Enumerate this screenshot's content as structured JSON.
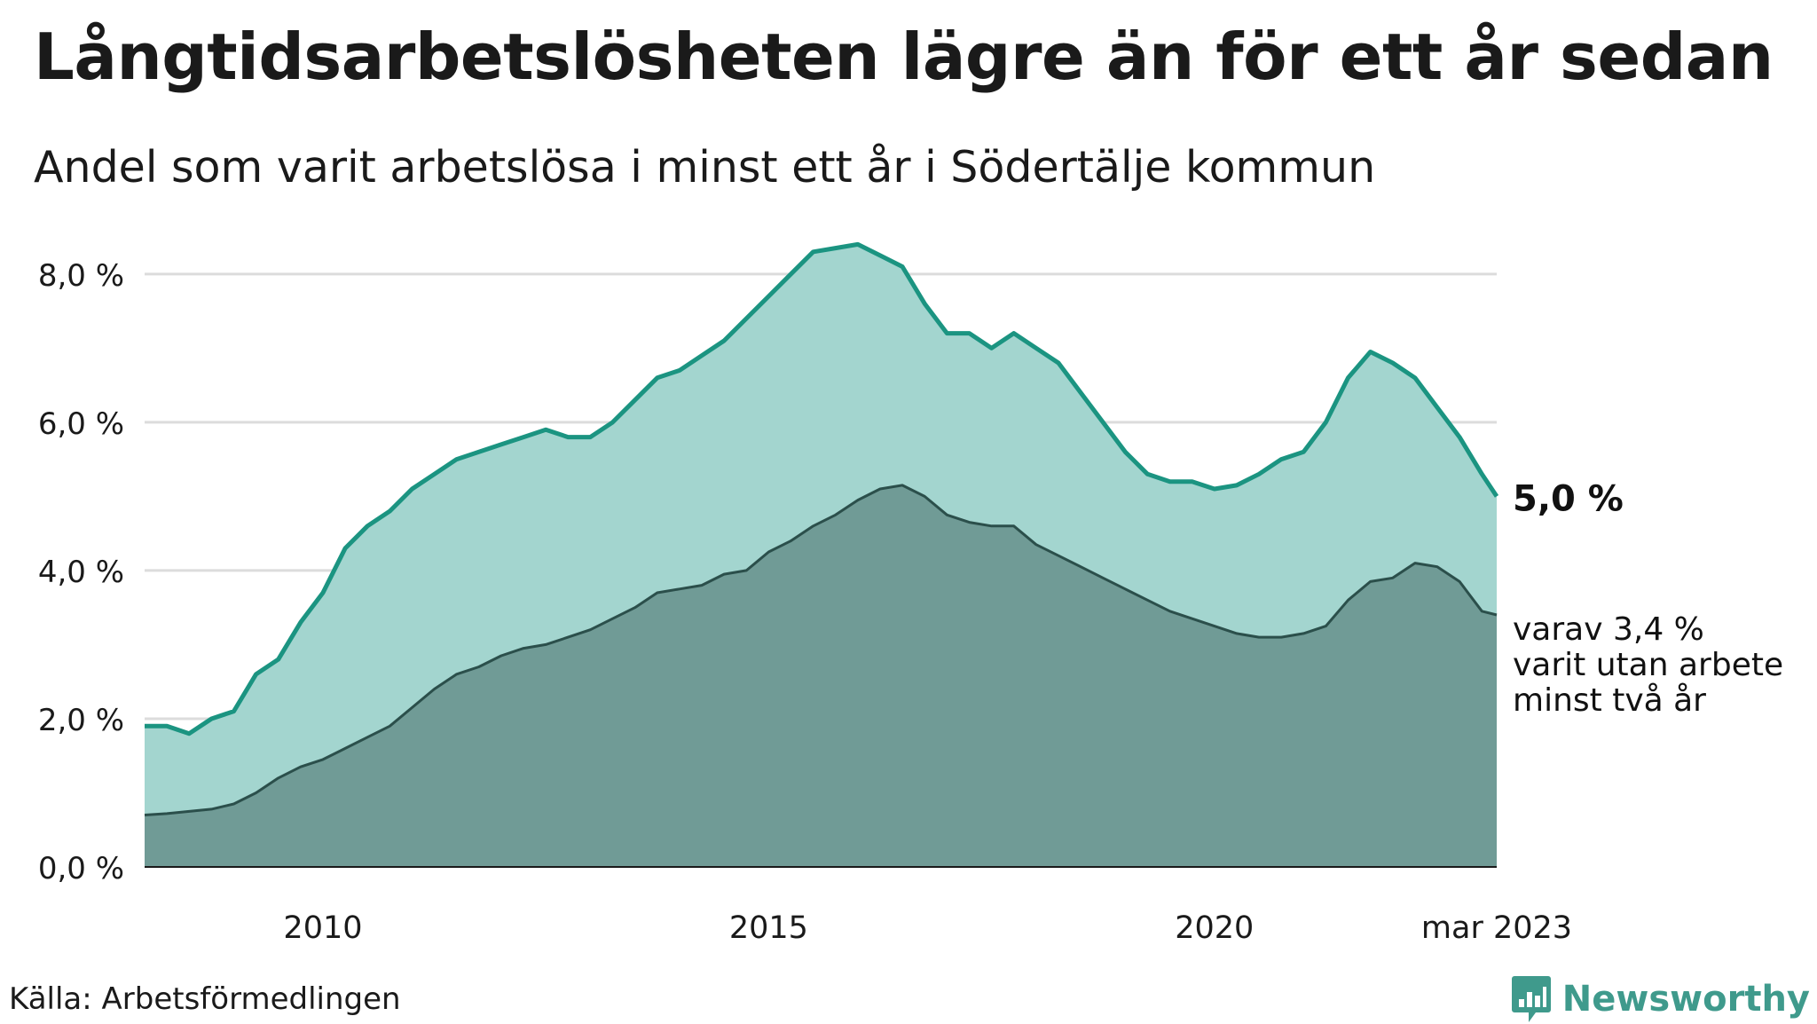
{
  "title": "Långtidsarbetslösheten lägre än för ett år sedan",
  "subtitle": "Andel som varit arbetslösa i minst ett år i Södertälje kommun",
  "source": "Källa: Arbetsförmedlingen",
  "brand": "Newsworthy",
  "colors": {
    "line_total": "#1b9481",
    "area_total": "#a3d5cf",
    "line_two_years": "#2b4f4b",
    "area_two_years": "#709b96",
    "grid": "#dcdcdc",
    "brand": "#3f9a8c"
  },
  "chart_data": {
    "type": "area",
    "x_range": [
      "2008-01",
      "2023-03"
    ],
    "ylim": [
      0,
      8.8
    ],
    "y_ticks": [
      0,
      2,
      4,
      6,
      8
    ],
    "y_tick_labels": [
      "0,0 %",
      "2,0 %",
      "4,0 %",
      "6,0 %",
      "8,0 %"
    ],
    "x_ticks": [
      "2010-01",
      "2015-01",
      "2020-01",
      "2023-03"
    ],
    "x_tick_labels": [
      "2010",
      "2015",
      "2020",
      "mar 2023"
    ],
    "grid": true,
    "series": [
      {
        "key": "total",
        "end_label": "5,0 %",
        "points": [
          [
            "2008-01",
            1.9
          ],
          [
            "2008-04",
            1.9
          ],
          [
            "2008-07",
            1.8
          ],
          [
            "2008-10",
            2.0
          ],
          [
            "2009-01",
            2.1
          ],
          [
            "2009-04",
            2.6
          ],
          [
            "2009-07",
            2.8
          ],
          [
            "2009-10",
            3.3
          ],
          [
            "2010-01",
            3.7
          ],
          [
            "2010-04",
            4.3
          ],
          [
            "2010-07",
            4.6
          ],
          [
            "2010-10",
            4.8
          ],
          [
            "2011-01",
            5.1
          ],
          [
            "2011-04",
            5.3
          ],
          [
            "2011-07",
            5.5
          ],
          [
            "2011-10",
            5.6
          ],
          [
            "2012-01",
            5.7
          ],
          [
            "2012-04",
            5.8
          ],
          [
            "2012-07",
            5.9
          ],
          [
            "2012-10",
            5.8
          ],
          [
            "2013-01",
            5.8
          ],
          [
            "2013-04",
            6.0
          ],
          [
            "2013-07",
            6.3
          ],
          [
            "2013-10",
            6.6
          ],
          [
            "2014-01",
            6.7
          ],
          [
            "2014-04",
            6.9
          ],
          [
            "2014-07",
            7.1
          ],
          [
            "2014-10",
            7.4
          ],
          [
            "2015-01",
            7.7
          ],
          [
            "2015-04",
            8.0
          ],
          [
            "2015-07",
            8.3
          ],
          [
            "2015-10",
            8.35
          ],
          [
            "2016-01",
            8.4
          ],
          [
            "2016-04",
            8.25
          ],
          [
            "2016-07",
            8.1
          ],
          [
            "2016-10",
            7.6
          ],
          [
            "2017-01",
            7.2
          ],
          [
            "2017-04",
            7.2
          ],
          [
            "2017-07",
            7.0
          ],
          [
            "2017-10",
            7.2
          ],
          [
            "2018-01",
            7.0
          ],
          [
            "2018-04",
            6.8
          ],
          [
            "2018-07",
            6.4
          ],
          [
            "2018-10",
            6.0
          ],
          [
            "2019-01",
            5.6
          ],
          [
            "2019-04",
            5.3
          ],
          [
            "2019-07",
            5.2
          ],
          [
            "2019-10",
            5.2
          ],
          [
            "2020-01",
            5.1
          ],
          [
            "2020-04",
            5.15
          ],
          [
            "2020-07",
            5.3
          ],
          [
            "2020-10",
            5.5
          ],
          [
            "2021-01",
            5.6
          ],
          [
            "2021-04",
            6.0
          ],
          [
            "2021-07",
            6.6
          ],
          [
            "2021-10",
            6.95
          ],
          [
            "2022-01",
            6.8
          ],
          [
            "2022-04",
            6.6
          ],
          [
            "2022-07",
            6.2
          ],
          [
            "2022-10",
            5.8
          ],
          [
            "2023-01",
            5.3
          ],
          [
            "2023-03",
            5.0
          ]
        ]
      },
      {
        "key": "two_years",
        "end_label_lines": [
          "varav 3,4 %",
          "varit utan arbete",
          "minst två år"
        ],
        "points": [
          [
            "2008-01",
            0.7
          ],
          [
            "2008-04",
            0.72
          ],
          [
            "2008-07",
            0.75
          ],
          [
            "2008-10",
            0.78
          ],
          [
            "2009-01",
            0.85
          ],
          [
            "2009-04",
            1.0
          ],
          [
            "2009-07",
            1.2
          ],
          [
            "2009-10",
            1.35
          ],
          [
            "2010-01",
            1.45
          ],
          [
            "2010-04",
            1.6
          ],
          [
            "2010-07",
            1.75
          ],
          [
            "2010-10",
            1.9
          ],
          [
            "2011-01",
            2.15
          ],
          [
            "2011-04",
            2.4
          ],
          [
            "2011-07",
            2.6
          ],
          [
            "2011-10",
            2.7
          ],
          [
            "2012-01",
            2.85
          ],
          [
            "2012-04",
            2.95
          ],
          [
            "2012-07",
            3.0
          ],
          [
            "2012-10",
            3.1
          ],
          [
            "2013-01",
            3.2
          ],
          [
            "2013-04",
            3.35
          ],
          [
            "2013-07",
            3.5
          ],
          [
            "2013-10",
            3.7
          ],
          [
            "2014-01",
            3.75
          ],
          [
            "2014-04",
            3.8
          ],
          [
            "2014-07",
            3.95
          ],
          [
            "2014-10",
            4.0
          ],
          [
            "2015-01",
            4.25
          ],
          [
            "2015-04",
            4.4
          ],
          [
            "2015-07",
            4.6
          ],
          [
            "2015-10",
            4.75
          ],
          [
            "2016-01",
            4.95
          ],
          [
            "2016-04",
            5.1
          ],
          [
            "2016-07",
            5.15
          ],
          [
            "2016-10",
            5.0
          ],
          [
            "2017-01",
            4.75
          ],
          [
            "2017-04",
            4.65
          ],
          [
            "2017-07",
            4.6
          ],
          [
            "2017-10",
            4.6
          ],
          [
            "2018-01",
            4.35
          ],
          [
            "2018-04",
            4.2
          ],
          [
            "2018-07",
            4.05
          ],
          [
            "2018-10",
            3.9
          ],
          [
            "2019-01",
            3.75
          ],
          [
            "2019-04",
            3.6
          ],
          [
            "2019-07",
            3.45
          ],
          [
            "2019-10",
            3.35
          ],
          [
            "2020-01",
            3.25
          ],
          [
            "2020-04",
            3.15
          ],
          [
            "2020-07",
            3.1
          ],
          [
            "2020-10",
            3.1
          ],
          [
            "2021-01",
            3.15
          ],
          [
            "2021-04",
            3.25
          ],
          [
            "2021-07",
            3.6
          ],
          [
            "2021-10",
            3.85
          ],
          [
            "2022-01",
            3.9
          ],
          [
            "2022-04",
            4.1
          ],
          [
            "2022-07",
            4.05
          ],
          [
            "2022-10",
            3.85
          ],
          [
            "2023-01",
            3.45
          ],
          [
            "2023-03",
            3.4
          ]
        ]
      }
    ]
  }
}
